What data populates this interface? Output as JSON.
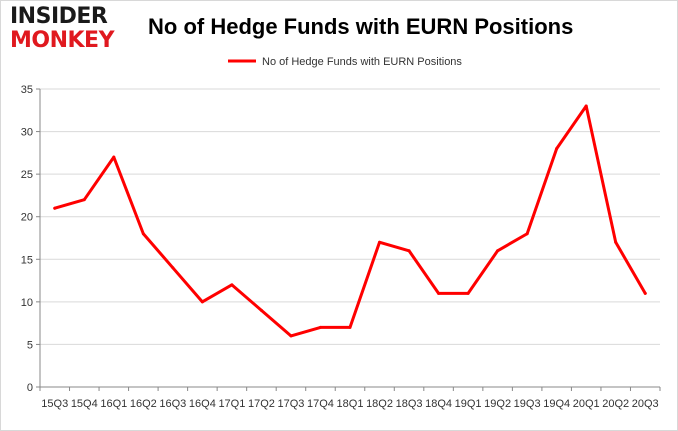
{
  "branding": {
    "logo_top": "INSIDER",
    "logo_bottom": "MONKEY",
    "logo_top_color": "#1a1a1a",
    "logo_bottom_color": "#e0191f"
  },
  "chart_data": {
    "type": "line",
    "title": "No of Hedge Funds with EURN Positions",
    "xlabel": "",
    "ylabel": "",
    "ylim": [
      0,
      35
    ],
    "yticks": [
      0,
      5,
      10,
      15,
      20,
      25,
      30,
      35
    ],
    "grid": true,
    "legend_position": "top-center",
    "categories": [
      "15Q3",
      "15Q4",
      "16Q1",
      "16Q2",
      "16Q3",
      "16Q4",
      "17Q1",
      "17Q2",
      "17Q3",
      "17Q4",
      "18Q1",
      "18Q2",
      "18Q3",
      "18Q4",
      "19Q1",
      "19Q2",
      "19Q3",
      "19Q4",
      "20Q1",
      "20Q2",
      "20Q3"
    ],
    "series": [
      {
        "name": "No of Hedge Funds with EURN Positions",
        "color": "#ff0000",
        "values": [
          21,
          22,
          27,
          18,
          14,
          10,
          12,
          9,
          6,
          7,
          7,
          17,
          16,
          11,
          11,
          16,
          18,
          28,
          33,
          17,
          11
        ]
      }
    ]
  }
}
